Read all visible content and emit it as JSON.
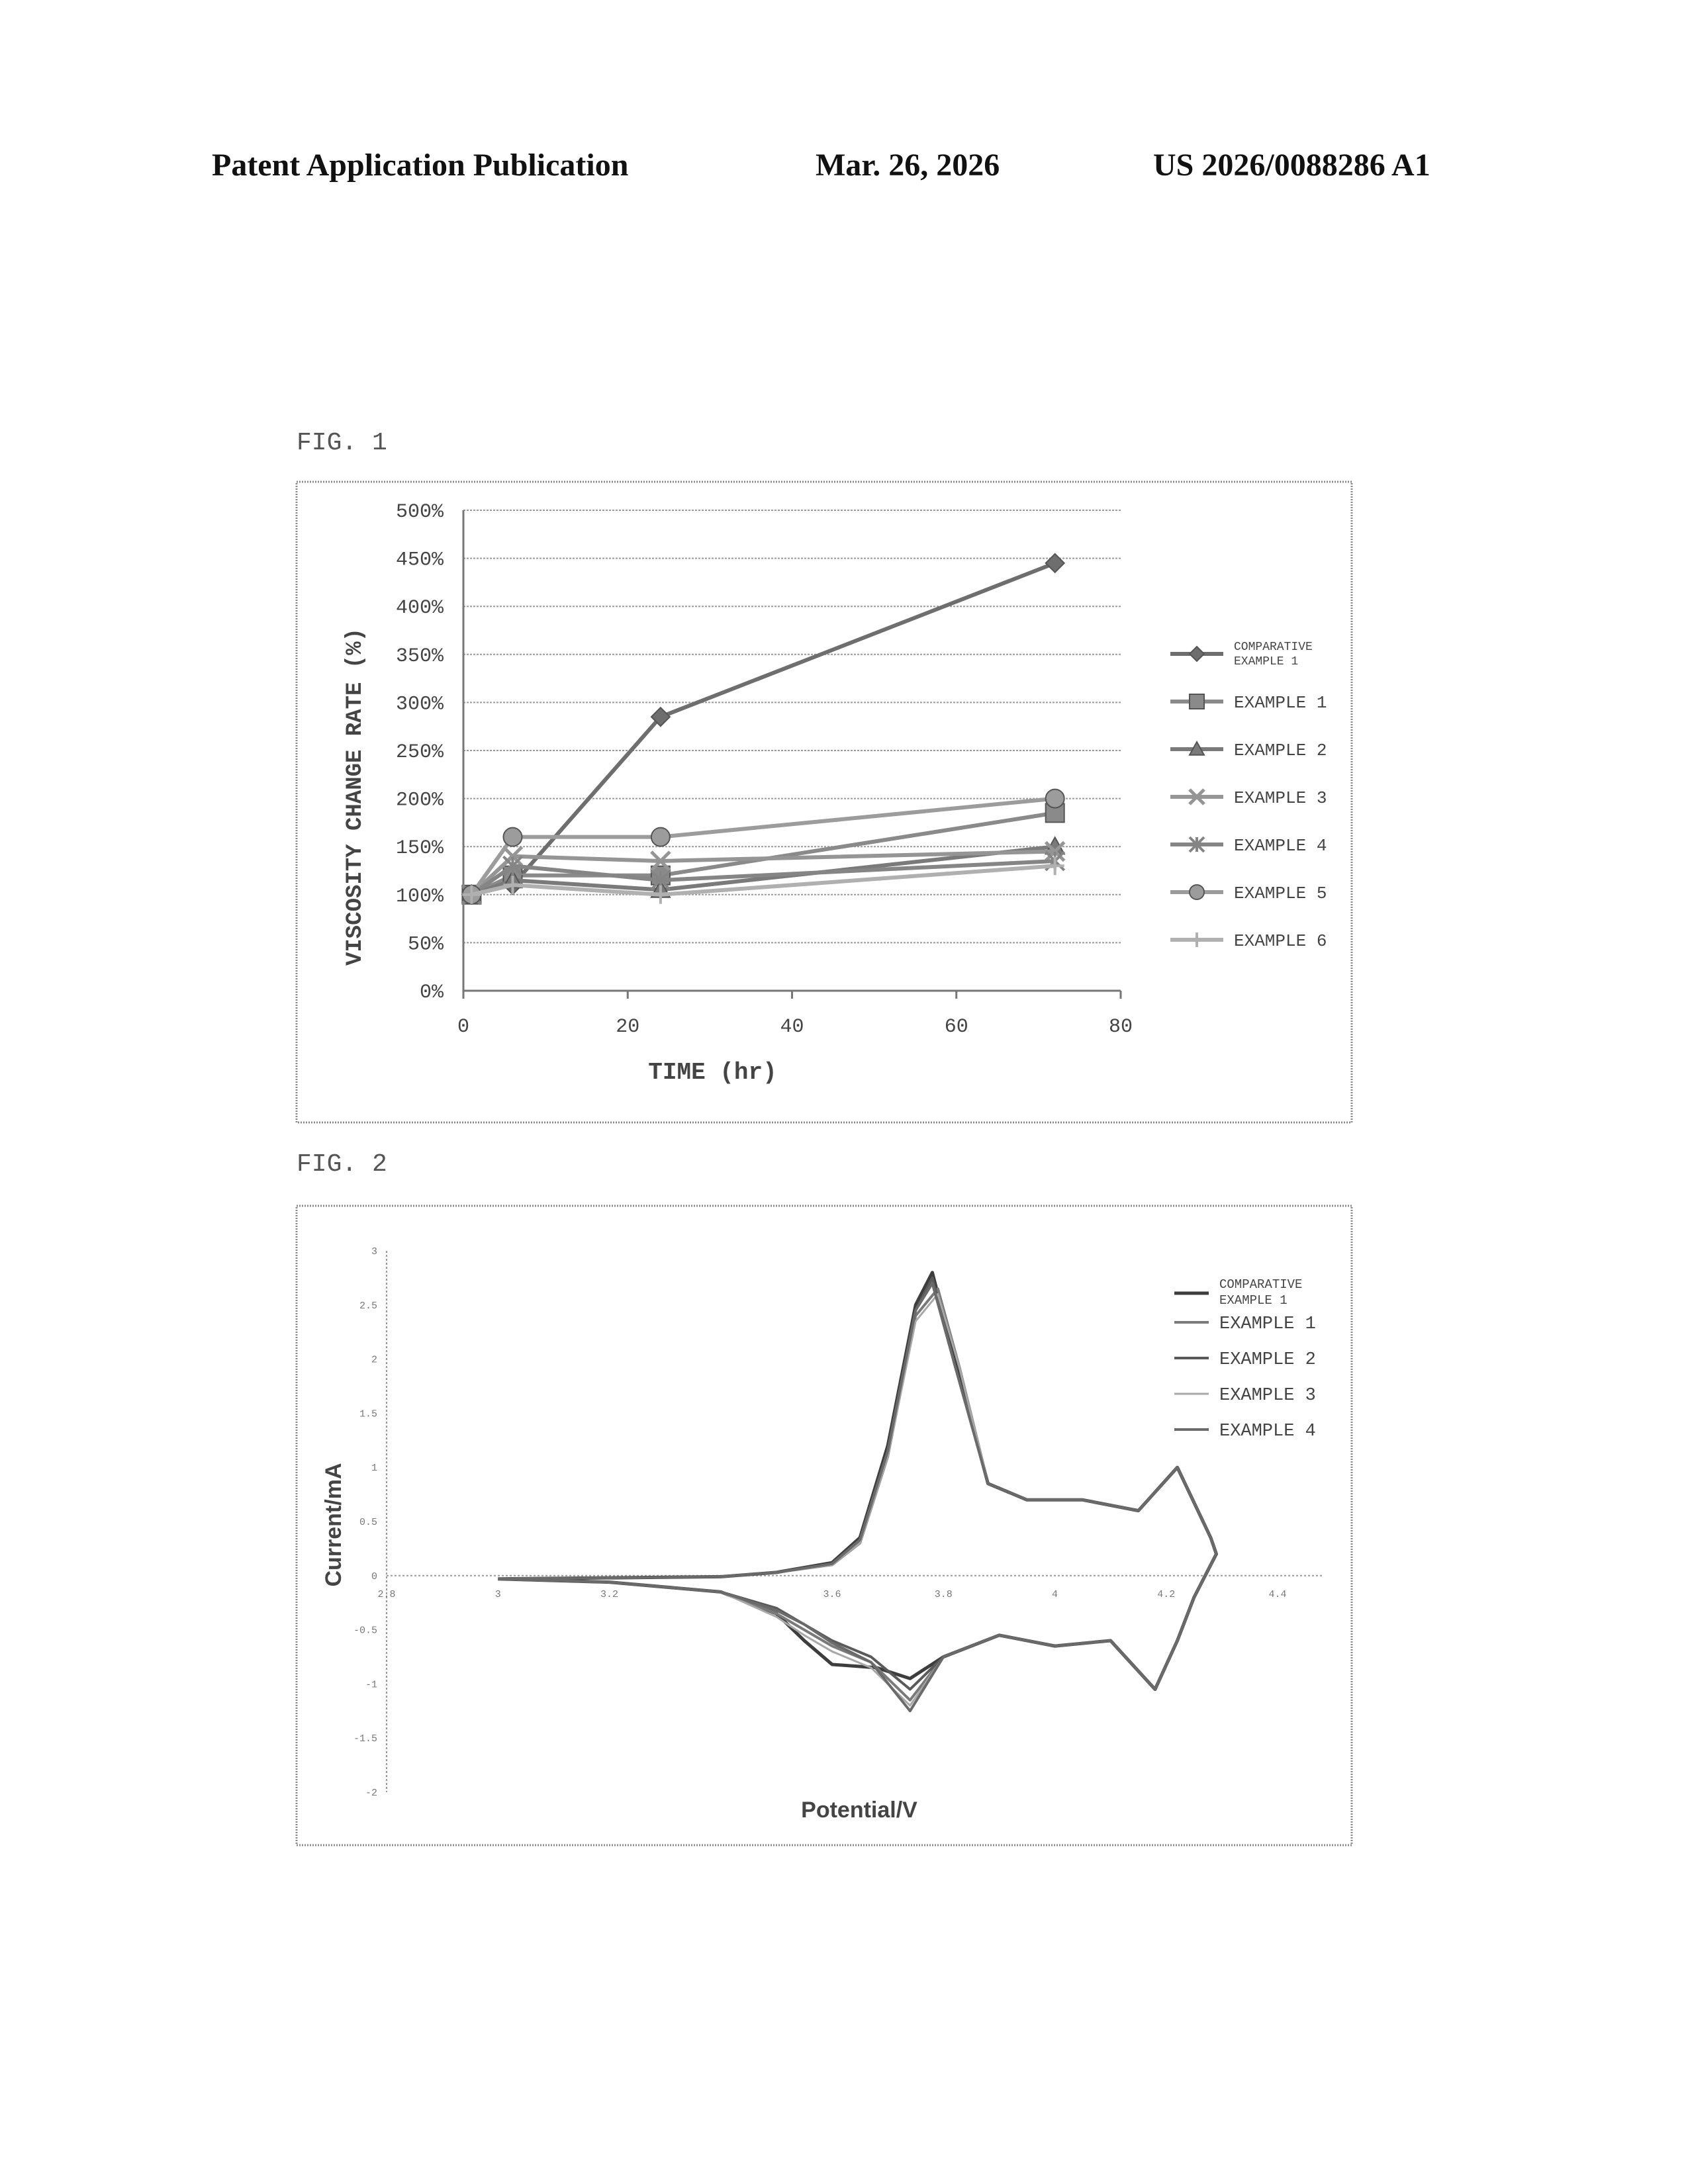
{
  "header": {
    "left": "Patent Application Publication",
    "date": "Mar. 26, 2026",
    "number": "US 2026/0088286 A1"
  },
  "figures": {
    "fig1_label": "FIG. 1",
    "fig2_label": "FIG. 2"
  },
  "chart_data": [
    {
      "type": "line",
      "title": "",
      "xlabel": "TIME (hr)",
      "ylabel": "VISCOSITY CHANGE RATE (%)",
      "xlim": [
        0,
        80
      ],
      "ylim": [
        0,
        500
      ],
      "x_ticks": [
        "0",
        "20",
        "40",
        "60",
        "80"
      ],
      "y_ticks": [
        "0%",
        "50%",
        "100%",
        "150%",
        "200%",
        "250%",
        "300%",
        "350%",
        "400%",
        "450%",
        "500%"
      ],
      "grid": true,
      "legend_position": "right",
      "series": [
        {
          "name": "COMPARATIVE EXAMPLE 1",
          "marker": "diamond",
          "x": [
            1,
            6,
            24,
            72
          ],
          "y": [
            100,
            110,
            285,
            445
          ]
        },
        {
          "name": "EXAMPLE 1",
          "marker": "square",
          "x": [
            1,
            6,
            24,
            72
          ],
          "y": [
            100,
            120,
            120,
            185
          ]
        },
        {
          "name": "EXAMPLE 2",
          "marker": "triangle",
          "x": [
            1,
            6,
            24,
            72
          ],
          "y": [
            100,
            115,
            105,
            150
          ]
        },
        {
          "name": "EXAMPLE 3",
          "marker": "x",
          "x": [
            1,
            6,
            24,
            72
          ],
          "y": [
            100,
            140,
            135,
            145
          ]
        },
        {
          "name": "EXAMPLE 4",
          "marker": "star",
          "x": [
            1,
            6,
            24,
            72
          ],
          "y": [
            100,
            130,
            115,
            135
          ]
        },
        {
          "name": "EXAMPLE 5",
          "marker": "circle",
          "x": [
            1,
            6,
            24,
            72
          ],
          "y": [
            100,
            160,
            160,
            200
          ]
        },
        {
          "name": "EXAMPLE 6",
          "marker": "plus",
          "x": [
            1,
            6,
            24,
            72
          ],
          "y": [
            100,
            110,
            100,
            130
          ]
        }
      ]
    },
    {
      "type": "line",
      "title": "",
      "xlabel": "Potential/V",
      "ylabel": "Current/mA",
      "xlim": [
        2.8,
        4.4
      ],
      "ylim": [
        -2,
        3
      ],
      "x_ticks": [
        "2.8",
        "3",
        "3.2",
        "3.6",
        "3.8",
        "4",
        "4.2",
        "4.4"
      ],
      "y_ticks": [
        "3",
        "2.5",
        "2",
        "1.5",
        "1",
        "0.5",
        "0",
        "-0.5",
        "-1",
        "-1.5",
        "-2"
      ],
      "grid": false,
      "legend_position": "top-right",
      "series": [
        {
          "name": "COMPARATIVE EXAMPLE 1",
          "x": [
            3.0,
            3.2,
            3.4,
            3.5,
            3.6,
            3.65,
            3.7,
            3.75,
            3.78,
            3.82,
            3.88,
            3.95,
            4.05,
            4.15,
            4.22,
            4.28,
            4.29,
            4.25,
            4.22,
            4.18,
            4.1,
            4.0,
            3.9,
            3.8,
            3.74,
            3.68,
            3.6,
            3.55,
            3.5,
            3.4,
            3.2,
            3.0
          ],
          "y": [
            -0.03,
            -0.02,
            -0.01,
            0.03,
            0.12,
            0.35,
            1.2,
            2.5,
            2.8,
            2.0,
            0.85,
            0.7,
            0.7,
            0.6,
            1.0,
            0.35,
            0.2,
            -0.2,
            -0.6,
            -1.05,
            -0.6,
            -0.65,
            -0.55,
            -0.75,
            -0.95,
            -0.85,
            -0.82,
            -0.6,
            -0.35,
            -0.15,
            -0.06,
            -0.03
          ]
        },
        {
          "name": "EXAMPLE 1",
          "x": [
            3.0,
            3.2,
            3.4,
            3.5,
            3.6,
            3.65,
            3.7,
            3.75,
            3.79,
            3.83,
            3.88,
            3.95,
            4.05,
            4.15,
            4.22,
            4.28,
            4.29,
            4.25,
            4.22,
            4.18,
            4.1,
            4.0,
            3.9,
            3.8,
            3.74,
            3.67,
            3.6,
            3.55,
            3.5,
            3.4,
            3.2,
            3.0
          ],
          "y": [
            -0.03,
            -0.02,
            -0.01,
            0.03,
            0.1,
            0.3,
            1.1,
            2.4,
            2.65,
            1.9,
            0.85,
            0.7,
            0.7,
            0.6,
            1.0,
            0.35,
            0.2,
            -0.2,
            -0.6,
            -1.05,
            -0.6,
            -0.65,
            -0.55,
            -0.75,
            -1.15,
            -0.8,
            -0.65,
            -0.5,
            -0.35,
            -0.15,
            -0.06,
            -0.03
          ]
        },
        {
          "name": "EXAMPLE 2",
          "x": [
            3.0,
            3.2,
            3.4,
            3.5,
            3.6,
            3.65,
            3.7,
            3.75,
            3.78,
            3.82,
            3.88,
            3.95,
            4.05,
            4.15,
            4.22,
            4.28,
            4.29,
            4.25,
            4.22,
            4.18,
            4.1,
            4.0,
            3.9,
            3.8,
            3.74,
            3.67,
            3.6,
            3.55,
            3.5,
            3.4,
            3.2,
            3.0
          ],
          "y": [
            -0.03,
            -0.02,
            -0.01,
            0.03,
            0.11,
            0.32,
            1.15,
            2.45,
            2.75,
            1.95,
            0.85,
            0.7,
            0.7,
            0.6,
            1.0,
            0.35,
            0.2,
            -0.2,
            -0.6,
            -1.05,
            -0.6,
            -0.65,
            -0.55,
            -0.75,
            -1.05,
            -0.75,
            -0.6,
            -0.45,
            -0.3,
            -0.15,
            -0.06,
            -0.03
          ]
        },
        {
          "name": "EXAMPLE 3",
          "x": [
            3.0,
            3.2,
            3.4,
            3.5,
            3.6,
            3.65,
            3.7,
            3.75,
            3.79,
            3.83,
            3.88,
            3.95,
            4.05,
            4.15,
            4.22,
            4.28,
            4.29,
            4.25,
            4.22,
            4.18,
            4.1,
            4.0,
            3.9,
            3.8,
            3.74,
            3.67,
            3.6,
            3.55,
            3.5,
            3.4,
            3.2,
            3.0
          ],
          "y": [
            -0.03,
            -0.02,
            -0.01,
            0.03,
            0.1,
            0.3,
            1.1,
            2.35,
            2.6,
            1.9,
            0.85,
            0.7,
            0.7,
            0.6,
            1.0,
            0.35,
            0.2,
            -0.2,
            -0.6,
            -1.05,
            -0.6,
            -0.65,
            -0.55,
            -0.75,
            -1.2,
            -0.85,
            -0.7,
            -0.55,
            -0.38,
            -0.15,
            -0.06,
            -0.03
          ]
        },
        {
          "name": "EXAMPLE 4",
          "x": [
            3.0,
            3.2,
            3.4,
            3.5,
            3.6,
            3.65,
            3.7,
            3.75,
            3.78,
            3.82,
            3.88,
            3.95,
            4.05,
            4.15,
            4.22,
            4.28,
            4.29,
            4.25,
            4.22,
            4.18,
            4.1,
            4.0,
            3.9,
            3.8,
            3.74,
            3.67,
            3.6,
            3.55,
            3.5,
            3.4,
            3.2,
            3.0
          ],
          "y": [
            -0.03,
            -0.02,
            -0.01,
            0.03,
            0.11,
            0.33,
            1.15,
            2.45,
            2.7,
            1.95,
            0.85,
            0.7,
            0.7,
            0.6,
            1.0,
            0.35,
            0.2,
            -0.2,
            -0.6,
            -1.05,
            -0.6,
            -0.65,
            -0.55,
            -0.75,
            -1.25,
            -0.8,
            -0.62,
            -0.45,
            -0.32,
            -0.15,
            -0.06,
            -0.03
          ]
        }
      ]
    }
  ]
}
